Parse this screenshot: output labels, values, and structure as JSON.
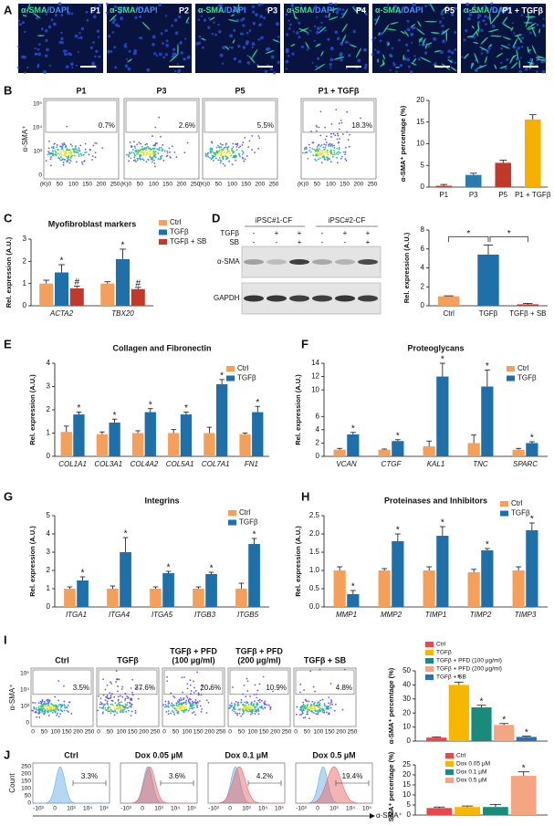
{
  "figure": {
    "panel_labels": [
      "A",
      "B",
      "C",
      "D",
      "E",
      "F",
      "G",
      "H",
      "I",
      "J"
    ],
    "A": {
      "stain": [
        "α-SMA",
        "/DAPI"
      ],
      "titles": [
        "P1",
        "P2",
        "P3",
        "P4",
        "P5",
        "P1 + TGFβ"
      ]
    },
    "B_flow": {
      "ylabel": "α-SMA⁺",
      "yticks": [
        "0",
        "10³",
        "10⁴",
        "10⁵"
      ],
      "xticks": [
        "(K)0",
        "50",
        "100",
        "150",
        "200",
        "250"
      ],
      "plots": [
        {
          "title": "P1",
          "percent": "0.7%"
        },
        {
          "title": "P3",
          "percent": "2.6%"
        },
        {
          "title": "P5",
          "percent": "5.5%"
        },
        {
          "title": "P1 + TGFβ",
          "percent": "18.3%"
        }
      ]
    },
    "D_blot": {
      "groups": [
        "iPSC#1-CF",
        "iPSC#2-CF"
      ],
      "rows": [
        {
          "label": "TGFβ",
          "signs": [
            "-",
            "+",
            "+",
            "-",
            "+",
            "+"
          ]
        },
        {
          "label": "SB",
          "signs": [
            "-",
            "-",
            "+",
            "-",
            "-",
            "+"
          ]
        }
      ],
      "bands": [
        "α-SMA",
        "GAPDH"
      ]
    },
    "I_flow": {
      "ylabel": "α-SMA⁺",
      "yticks": [
        "0",
        "10³",
        "10⁴",
        "10⁵"
      ],
      "xticks": [
        "0",
        "50",
        "100",
        "150",
        "200",
        "250"
      ],
      "plots": [
        {
          "title": [
            "Ctrl"
          ],
          "percent": "3.5%"
        },
        {
          "title": [
            "TGFβ"
          ],
          "percent": "37.6%"
        },
        {
          "title": [
            "TGFβ + PFD",
            "(100 µg/ml)"
          ],
          "percent": "20.6%"
        },
        {
          "title": [
            "TGFβ + PFD",
            "(200 µg/ml)"
          ],
          "percent": "10.9%"
        },
        {
          "title": [
            "TGFβ + SB"
          ],
          "percent": "4.8%"
        }
      ]
    },
    "J_hist": {
      "ylabel": "Count",
      "yticks": [
        "0",
        "50",
        "100",
        "150",
        "200",
        "250"
      ],
      "xticks": [
        "-10³",
        "0",
        "10³",
        "10⁴",
        "10⁵"
      ],
      "xlabel": "α-SMA⁺",
      "plots": [
        {
          "title": "Ctrl",
          "percent": "3.3%"
        },
        {
          "title": "Dox 0.05 µM",
          "percent": "3.6%"
        },
        {
          "title": "Dox 0.1 µM",
          "percent": "4.2%"
        },
        {
          "title": "Dox 0.5 µM",
          "percent": "19.4%"
        }
      ]
    }
  },
  "chart_data": [
    {
      "type": "bar",
      "ylabel": "α-SMA⁺ percentage (%)",
      "categories": [
        "P1",
        "P3",
        "P5",
        "P1 + TGFβ"
      ],
      "values": [
        0.3,
        2.8,
        5.6,
        15.6
      ],
      "errors": [
        0.3,
        0.4,
        0.6,
        1.1
      ],
      "colors": [
        "#c0392b",
        "#2a7ab0",
        "#c0392b",
        "#f5b000"
      ],
      "ylim": [
        0,
        20
      ],
      "yticks": [
        0,
        5,
        10,
        15,
        20
      ]
    },
    {
      "type": "bar",
      "title": "Myofibroblast markers",
      "ylabel": "Rel. expression (A.U.)",
      "categories": [
        "ACTA2",
        "TBX20"
      ],
      "series": [
        {
          "name": "Ctrl",
          "color": "#f5a05a",
          "values": [
            1.0,
            1.0
          ],
          "errors": [
            0.15,
            0.08
          ]
        },
        {
          "name": "TGFβ",
          "color": "#1f6fa8",
          "values": [
            1.5,
            2.1
          ],
          "errors": [
            0.35,
            0.45
          ],
          "annotations": [
            "*",
            "*"
          ]
        },
        {
          "name": "TGFβ + SB",
          "color": "#c0392b",
          "values": [
            0.78,
            0.75
          ],
          "errors": [
            0.1,
            0.08
          ],
          "annotations": [
            "#",
            "#"
          ]
        }
      ],
      "ylim": [
        0,
        3
      ],
      "yticks": [
        0,
        1,
        2,
        3
      ]
    },
    {
      "type": "bar",
      "ylabel": "Rel. expression (A.U.)",
      "categories": [
        "Ctrl",
        "TGFβ",
        "TGFβ + SB"
      ],
      "values": [
        1.0,
        5.4,
        0.15
      ],
      "errors": [
        0.05,
        1.0,
        0.1
      ],
      "colors": [
        "#f5a05a",
        "#1f6fa8",
        "#c0392b"
      ],
      "bracket_labels": [
        "*",
        "*"
      ],
      "ylim": [
        0,
        8
      ],
      "yticks": [
        0,
        2,
        4,
        6,
        8
      ]
    },
    {
      "type": "bar",
      "title": "Collagen and Fibronectin",
      "ylabel": "Rel. expression (A.U.)",
      "categories": [
        "COL1A1",
        "COL3A1",
        "COL4A2",
        "COL5A1",
        "COL7A1",
        "FN1"
      ],
      "series": [
        {
          "name": "Ctrl",
          "color": "#f5a05a",
          "values": [
            1.05,
            0.95,
            1.0,
            1.0,
            1.0,
            0.95
          ],
          "errors": [
            0.25,
            0.1,
            0.1,
            0.15,
            0.25,
            0.05
          ]
        },
        {
          "name": "TGFβ",
          "color": "#1f6fa8",
          "values": [
            1.8,
            1.45,
            1.9,
            1.8,
            3.1,
            1.9
          ],
          "errors": [
            0.1,
            0.15,
            0.15,
            0.1,
            0.2,
            0.25
          ],
          "annotations": [
            "*",
            "*",
            "*",
            "*",
            "*",
            "*"
          ]
        }
      ],
      "ylim": [
        0,
        4
      ],
      "yticks": [
        0,
        1,
        2,
        3,
        4
      ]
    },
    {
      "type": "bar",
      "title": "Proteoglycans",
      "ylabel": "Rel. expression (A.U.)",
      "categories": [
        "VCAN",
        "CTGF",
        "KAL1",
        "TNC",
        "SPARC"
      ],
      "series": [
        {
          "name": "Ctrl",
          "color": "#f5a05a",
          "values": [
            1.0,
            1.0,
            1.5,
            2.0,
            1.0
          ],
          "errors": [
            0.2,
            0.1,
            0.8,
            1.2,
            0.2
          ]
        },
        {
          "name": "TGFβ",
          "color": "#1f6fa8",
          "values": [
            3.3,
            2.3,
            12.0,
            10.5,
            2.0
          ],
          "errors": [
            0.3,
            0.2,
            2.0,
            2.5,
            0.2
          ],
          "annotations": [
            "*",
            "*",
            "*",
            "*",
            "*"
          ]
        }
      ],
      "ylim": [
        0,
        14
      ],
      "yticks": [
        0,
        2,
        4,
        6,
        10,
        12,
        14
      ]
    },
    {
      "type": "bar",
      "title": "Integrins",
      "ylabel": "Rel. expression (A.U.)",
      "categories": [
        "ITGA1",
        "ITGA4",
        "ITGA5",
        "ITGB3",
        "ITGB5"
      ],
      "series": [
        {
          "name": "Ctrl",
          "color": "#f5a05a",
          "values": [
            1.0,
            1.0,
            1.0,
            1.0,
            1.0
          ],
          "errors": [
            0.1,
            0.15,
            0.1,
            0.1,
            0.3
          ]
        },
        {
          "name": "TGFβ",
          "color": "#1f6fa8",
          "values": [
            1.45,
            3.0,
            1.85,
            1.8,
            3.45
          ],
          "errors": [
            0.2,
            0.8,
            0.1,
            0.1,
            0.3
          ],
          "annotations": [
            "*",
            "*",
            "*",
            "*",
            "*"
          ]
        }
      ],
      "ylim": [
        0,
        5
      ],
      "yticks": [
        0,
        1,
        2,
        3,
        4,
        5
      ]
    },
    {
      "type": "bar",
      "title": "Proteinases and Inhibitors",
      "ylabel": "Rel. expression (A.U.)",
      "categories": [
        "MMP1",
        "MMP2",
        "TIMP1",
        "TIMP2",
        "TIMP3"
      ],
      "series": [
        {
          "name": "Ctrl",
          "color": "#f5a05a",
          "values": [
            1.0,
            1.0,
            1.0,
            0.95,
            1.0
          ],
          "errors": [
            0.1,
            0.05,
            0.1,
            0.08,
            0.1
          ]
        },
        {
          "name": "TGFβ",
          "color": "#1f6fa8",
          "values": [
            0.35,
            1.8,
            1.95,
            1.55,
            2.1
          ],
          "errors": [
            0.1,
            0.2,
            0.25,
            0.05,
            0.2
          ],
          "annotations": [
            "*",
            "*",
            "*",
            "*",
            "*"
          ]
        }
      ],
      "ylim": [
        0,
        2.5
      ],
      "yticks": [
        {
          "value": 0,
          "label": "0.0"
        },
        0.5,
        {
          "value": 1,
          "label": "1.0"
        },
        1.5,
        {
          "value": 2,
          "label": "2.0"
        },
        2.5
      ]
    },
    {
      "type": "bar",
      "ylabel": "α-SMA⁺ percentage (%)",
      "categories": [
        null
      ],
      "series": [
        {
          "name": "Ctrl",
          "color": "#e8474e",
          "values": [
            2.5
          ],
          "errors": [
            0.5
          ]
        },
        {
          "name": "TGFβ",
          "color": "#f5b700",
          "values": [
            40
          ],
          "errors": [
            2
          ],
          "annotations": [
            "*"
          ]
        },
        {
          "name": "TGFβ + PFD (100 µg/ml)",
          "color": "#1a8a7a",
          "values": [
            24
          ],
          "errors": [
            1.5
          ],
          "annotations": [
            "*"
          ]
        },
        {
          "name": "TGFβ + PFD (200 µg/ml)",
          "color": "#f4a582",
          "values": [
            11.5
          ],
          "errors": [
            1
          ],
          "annotations": [
            "*"
          ]
        },
        {
          "name": "TGFβ + SB",
          "color": "#2e6fb0",
          "values": [
            3
          ],
          "errors": [
            0.5
          ],
          "annotations": [
            "*"
          ]
        }
      ],
      "ylim": [
        0,
        50
      ],
      "yticks": [
        0,
        10,
        20,
        30,
        40,
        50
      ]
    },
    {
      "type": "bar",
      "ylabel": "α-SMA⁺ percentage (%)",
      "categories": [
        null
      ],
      "series": [
        {
          "name": "Ctrl",
          "color": "#e8474e",
          "values": [
            3.5
          ],
          "errors": [
            0.5
          ]
        },
        {
          "name": "Dox 0.05 µM",
          "color": "#f5b700",
          "values": [
            4
          ],
          "errors": [
            0.5
          ]
        },
        {
          "name": "Dox 0.1 µM",
          "color": "#1a8a7a",
          "values": [
            4
          ],
          "errors": [
            1.3
          ]
        },
        {
          "name": "Dox 0.5 µM",
          "color": "#f4a582",
          "values": [
            19.5
          ],
          "errors": [
            2
          ],
          "annotations": [
            "*"
          ]
        }
      ],
      "ylim": [
        0,
        25
      ],
      "yticks": [
        0,
        5,
        10,
        15,
        20,
        25
      ]
    }
  ]
}
